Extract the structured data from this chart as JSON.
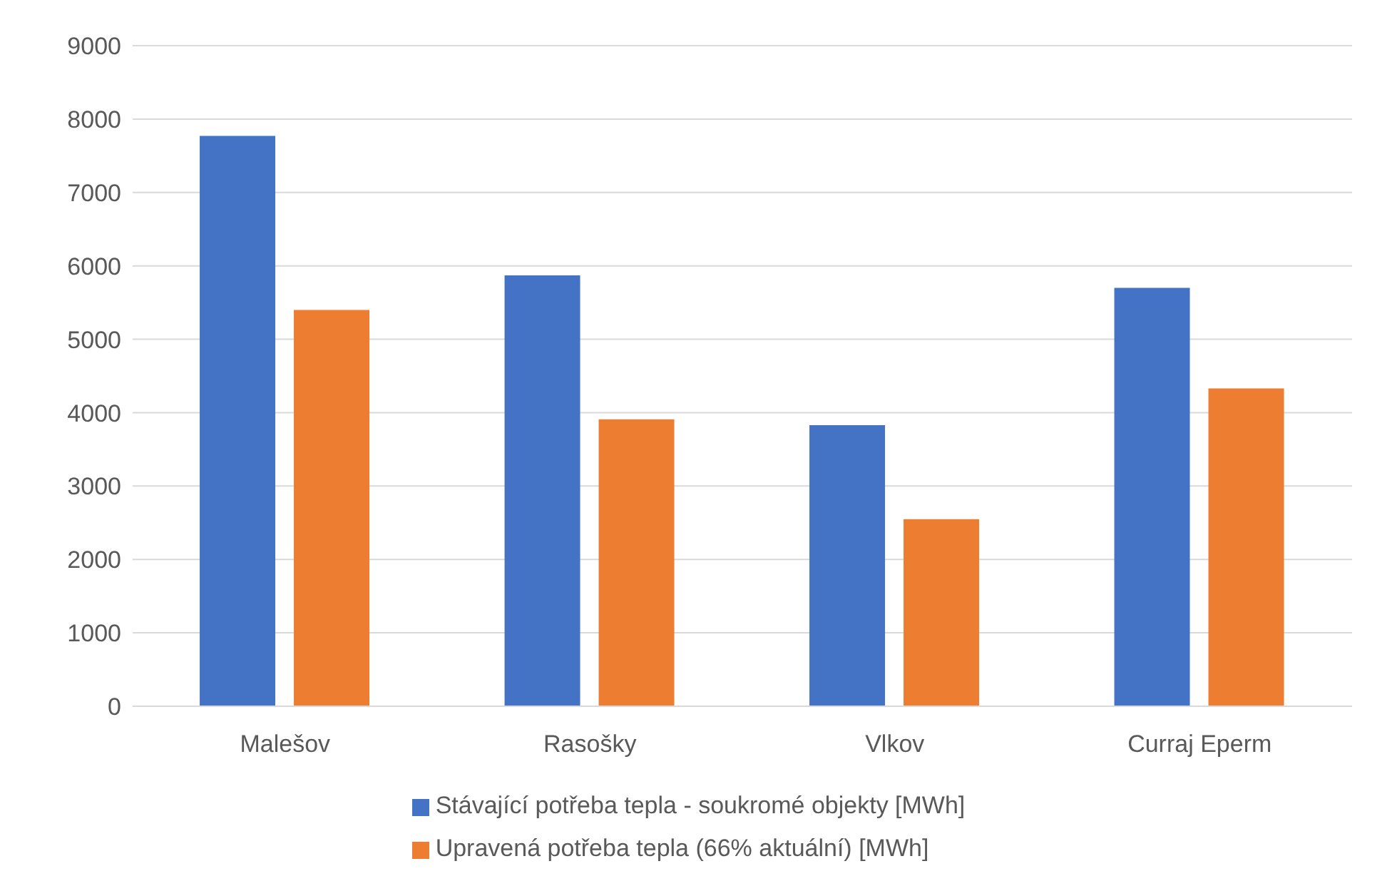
{
  "chart_data": {
    "type": "bar",
    "categories": [
      "Malešov",
      "Rasošky",
      "Vlkov",
      "Curraj Eperm"
    ],
    "series": [
      {
        "name": "Stávající potřeba tepla -  soukromé objekty [MWh]",
        "color": "#4472c4",
        "values": [
          7770,
          5870,
          3830,
          5700
        ]
      },
      {
        "name": "Upravená potřeba tepla (66% aktuální) [MWh]",
        "color": "#ed7d31",
        "values": [
          5400,
          3910,
          2550,
          4330
        ]
      }
    ],
    "ylim": [
      0,
      9000
    ],
    "yticks": [
      0,
      1000,
      2000,
      3000,
      4000,
      5000,
      6000,
      7000,
      8000,
      9000
    ],
    "grid": "y",
    "legend": "bottom"
  }
}
